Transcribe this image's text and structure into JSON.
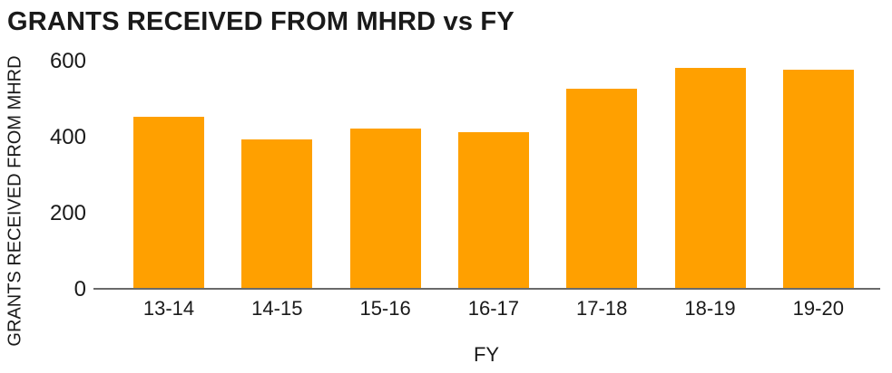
{
  "chart_data": {
    "type": "bar",
    "title": "GRANTS RECEIVED FROM MHRD vs FY",
    "xlabel": "FY",
    "ylabel": "GRANTS RECEIVED FROM MHRD",
    "categories": [
      "13-14",
      "14-15",
      "15-16",
      "16-17",
      "17-18",
      "18-19",
      "19-20"
    ],
    "values": [
      450,
      390,
      420,
      410,
      525,
      580,
      575
    ],
    "yticks": [
      0,
      200,
      400,
      600
    ],
    "ylim": [
      0,
      620
    ],
    "grid": false,
    "legend": "none",
    "bar_color": "#FFA000",
    "axis_line_color": "#6a6a6a",
    "text_color": "#1a1a1a"
  }
}
